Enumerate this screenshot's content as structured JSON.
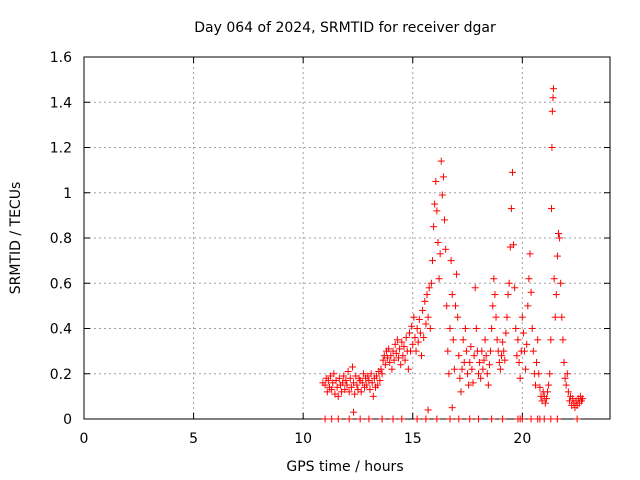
{
  "chart_data": {
    "type": "scatter",
    "title": "Day 064 of 2024, SRMTID for receiver dgar",
    "xlabel": "GPS time / hours",
    "ylabel": "SRMTID / TECUs",
    "xlim": [
      0,
      24
    ],
    "ylim": [
      0,
      1.6
    ],
    "xticks": [
      0,
      5,
      10,
      15,
      20
    ],
    "xtick_labels": [
      "0",
      "5",
      "10",
      "15",
      "20"
    ],
    "yticks": [
      0,
      0.2,
      0.4,
      0.6,
      0.8,
      1,
      1.2,
      1.4,
      1.6
    ],
    "ytick_labels": [
      "0",
      "0.2",
      "0.4",
      "0.6",
      "0.8",
      "1",
      "1.2",
      "1.4",
      "1.6"
    ],
    "grid": true,
    "marker": "+",
    "color": "#ff0000",
    "series": [
      {
        "name": "SRMTID",
        "points": [
          [
            10.9,
            0.16
          ],
          [
            11.0,
            0.15
          ],
          [
            11.05,
            0.18
          ],
          [
            11.1,
            0.12
          ],
          [
            11.15,
            0.17
          ],
          [
            11.2,
            0.14
          ],
          [
            11.25,
            0.19
          ],
          [
            11.3,
            0.13
          ],
          [
            11.35,
            0.16
          ],
          [
            11.4,
            0.2
          ],
          [
            11.45,
            0.11
          ],
          [
            11.5,
            0.17
          ],
          [
            11.55,
            0.14
          ],
          [
            11.6,
            0.1
          ],
          [
            11.65,
            0.18
          ],
          [
            11.7,
            0.15
          ],
          [
            11.75,
            0.12
          ],
          [
            11.8,
            0.16
          ],
          [
            11.85,
            0.19
          ],
          [
            11.9,
            0.13
          ],
          [
            11.95,
            0.17
          ],
          [
            12.0,
            0.15
          ],
          [
            12.05,
            0.21
          ],
          [
            12.1,
            0.12
          ],
          [
            12.15,
            0.18
          ],
          [
            12.2,
            0.14
          ],
          [
            12.25,
            0.23
          ],
          [
            12.3,
            0.16
          ],
          [
            12.35,
            0.11
          ],
          [
            12.4,
            0.19
          ],
          [
            12.45,
            0.15
          ],
          [
            12.5,
            0.13
          ],
          [
            12.55,
            0.18
          ],
          [
            12.6,
            0.17
          ],
          [
            12.65,
            0.12
          ],
          [
            12.7,
            0.16
          ],
          [
            12.75,
            0.2
          ],
          [
            12.8,
            0.14
          ],
          [
            12.85,
            0.18
          ],
          [
            12.9,
            0.15
          ],
          [
            12.95,
            0.19
          ],
          [
            13.0,
            0.17
          ],
          [
            13.05,
            0.13
          ],
          [
            13.1,
            0.2
          ],
          [
            13.15,
            0.16
          ],
          [
            13.2,
            0.1
          ],
          [
            13.25,
            0.18
          ],
          [
            13.3,
            0.14
          ],
          [
            13.35,
            0.19
          ],
          [
            13.4,
            0.15
          ],
          [
            13.45,
            0.21
          ],
          [
            13.5,
            0.17
          ],
          [
            13.55,
            0.22
          ],
          [
            13.6,
            0.2
          ],
          [
            13.65,
            0.26
          ],
          [
            13.7,
            0.28
          ],
          [
            13.75,
            0.24
          ],
          [
            13.8,
            0.3
          ],
          [
            13.85,
            0.27
          ],
          [
            13.9,
            0.31
          ],
          [
            13.95,
            0.25
          ],
          [
            14.0,
            0.28
          ],
          [
            14.05,
            0.22
          ],
          [
            14.1,
            0.3
          ],
          [
            14.15,
            0.26
          ],
          [
            14.2,
            0.33
          ],
          [
            14.25,
            0.29
          ],
          [
            14.3,
            0.35
          ],
          [
            14.35,
            0.27
          ],
          [
            14.4,
            0.31
          ],
          [
            14.45,
            0.24
          ],
          [
            14.5,
            0.34
          ],
          [
            14.55,
            0.28
          ],
          [
            14.6,
            0.32
          ],
          [
            14.65,
            0.26
          ],
          [
            14.7,
            0.36
          ],
          [
            14.75,
            0.3
          ],
          [
            14.8,
            0.22
          ],
          [
            14.85,
            0.38
          ],
          [
            14.9,
            0.3
          ],
          [
            14.95,
            0.41
          ],
          [
            15.0,
            0.33
          ],
          [
            15.05,
            0.45
          ],
          [
            15.1,
            0.36
          ],
          [
            15.15,
            0.3
          ],
          [
            15.2,
            0.4
          ],
          [
            15.25,
            0.34
          ],
          [
            15.3,
            0.44
          ],
          [
            15.35,
            0.38
          ],
          [
            15.4,
            0.28
          ],
          [
            15.45,
            0.48
          ],
          [
            15.5,
            0.36
          ],
          [
            15.55,
            0.52
          ],
          [
            15.6,
            0.42
          ],
          [
            15.65,
            0.55
          ],
          [
            15.7,
            0.45
          ],
          [
            15.75,
            0.58
          ],
          [
            15.8,
            0.4
          ],
          [
            15.85,
            0.6
          ],
          [
            15.9,
            0.7
          ],
          [
            15.95,
            0.85
          ],
          [
            16.0,
            0.95
          ],
          [
            16.05,
            1.05
          ],
          [
            16.1,
            0.92
          ],
          [
            16.15,
            0.78
          ],
          [
            16.2,
            0.62
          ],
          [
            16.25,
            0.73
          ],
          [
            16.3,
            1.14
          ],
          [
            16.35,
            0.99
          ],
          [
            16.4,
            1.07
          ],
          [
            16.45,
            0.88
          ],
          [
            16.5,
            0.75
          ],
          [
            16.55,
            0.5
          ],
          [
            16.6,
            0.3
          ],
          [
            16.65,
            0.2
          ],
          [
            16.7,
            0.4
          ],
          [
            16.75,
            0.7
          ],
          [
            16.8,
            0.55
          ],
          [
            16.85,
            0.35
          ],
          [
            16.9,
            0.22
          ],
          [
            16.95,
            0.5
          ],
          [
            17.0,
            0.64
          ],
          [
            17.05,
            0.45
          ],
          [
            17.1,
            0.28
          ],
          [
            17.15,
            0.18
          ],
          [
            17.2,
            0.12
          ],
          [
            17.25,
            0.22
          ],
          [
            17.3,
            0.35
          ],
          [
            17.35,
            0.25
          ],
          [
            17.4,
            0.4
          ],
          [
            17.45,
            0.3
          ],
          [
            17.5,
            0.2
          ],
          [
            17.55,
            0.15
          ],
          [
            17.6,
            0.25
          ],
          [
            17.65,
            0.32
          ],
          [
            17.7,
            0.22
          ],
          [
            17.75,
            0.16
          ],
          [
            17.8,
            0.28
          ],
          [
            17.85,
            0.58
          ],
          [
            17.9,
            0.4
          ],
          [
            17.95,
            0.3
          ],
          [
            18.0,
            0.2
          ],
          [
            18.05,
            0.25
          ],
          [
            18.1,
            0.18
          ],
          [
            18.15,
            0.3
          ],
          [
            18.2,
            0.22
          ],
          [
            18.25,
            0.26
          ],
          [
            18.3,
            0.35
          ],
          [
            18.35,
            0.28
          ],
          [
            18.4,
            0.2
          ],
          [
            18.45,
            0.15
          ],
          [
            18.5,
            0.24
          ],
          [
            18.55,
            0.3
          ],
          [
            18.6,
            0.4
          ],
          [
            18.65,
            0.5
          ],
          [
            18.7,
            0.62
          ],
          [
            18.75,
            0.55
          ],
          [
            18.8,
            0.45
          ],
          [
            18.85,
            0.35
          ],
          [
            18.9,
            0.3
          ],
          [
            18.95,
            0.25
          ],
          [
            19.0,
            0.22
          ],
          [
            19.05,
            0.28
          ],
          [
            19.1,
            0.34
          ],
          [
            19.15,
            0.3
          ],
          [
            19.2,
            0.26
          ],
          [
            19.25,
            0.38
          ],
          [
            19.3,
            0.45
          ],
          [
            19.35,
            0.55
          ],
          [
            19.4,
            0.6
          ],
          [
            19.45,
            0.76
          ],
          [
            19.5,
            0.93
          ],
          [
            19.55,
            1.09
          ],
          [
            19.6,
            0.77
          ],
          [
            19.65,
            0.58
          ],
          [
            19.7,
            0.4
          ],
          [
            19.75,
            0.28
          ],
          [
            19.8,
            0.35
          ],
          [
            19.85,
            0.25
          ],
          [
            19.9,
            0.18
          ],
          [
            19.95,
            0.3
          ],
          [
            20.0,
            0.45
          ],
          [
            20.05,
            0.38
          ],
          [
            20.1,
            0.3
          ],
          [
            20.15,
            0.22
          ],
          [
            20.2,
            0.33
          ],
          [
            20.25,
            0.5
          ],
          [
            20.3,
            0.62
          ],
          [
            20.35,
            0.73
          ],
          [
            20.4,
            0.56
          ],
          [
            20.45,
            0.4
          ],
          [
            20.5,
            0.3
          ],
          [
            20.55,
            0.2
          ],
          [
            20.6,
            0.15
          ],
          [
            20.65,
            0.25
          ],
          [
            20.7,
            0.35
          ],
          [
            20.75,
            0.2
          ],
          [
            20.8,
            0.14
          ],
          [
            20.85,
            0.1
          ],
          [
            20.9,
            0.08
          ],
          [
            20.95,
            0.12
          ],
          [
            21.0,
            0.1
          ],
          [
            21.05,
            0.07
          ],
          [
            21.1,
            0.09
          ],
          [
            21.15,
            0.12
          ],
          [
            21.2,
            0.15
          ],
          [
            21.25,
            0.2
          ],
          [
            21.3,
            0.35
          ],
          [
            21.33,
            0.93
          ],
          [
            21.35,
            1.2
          ],
          [
            21.37,
            1.36
          ],
          [
            21.4,
            1.42
          ],
          [
            21.42,
            1.46
          ],
          [
            21.45,
            0.62
          ],
          [
            21.5,
            0.45
          ],
          [
            21.55,
            0.55
          ],
          [
            21.6,
            0.72
          ],
          [
            21.65,
            0.82
          ],
          [
            21.7,
            0.8
          ],
          [
            21.75,
            0.6
          ],
          [
            21.8,
            0.45
          ],
          [
            21.85,
            0.35
          ],
          [
            21.9,
            0.25
          ],
          [
            21.95,
            0.18
          ],
          [
            22.0,
            0.15
          ],
          [
            22.05,
            0.2
          ],
          [
            22.1,
            0.12
          ],
          [
            22.15,
            0.08
          ],
          [
            22.2,
            0.1
          ],
          [
            22.25,
            0.06
          ],
          [
            22.3,
            0.09
          ],
          [
            22.35,
            0.07
          ],
          [
            22.4,
            0.05
          ],
          [
            22.45,
            0.08
          ],
          [
            22.5,
            0.06
          ],
          [
            22.55,
            0.09
          ],
          [
            22.6,
            0.07
          ],
          [
            22.65,
            0.1
          ],
          [
            22.7,
            0.08
          ],
          [
            22.75,
            0.09
          ],
          [
            11.0,
            0
          ],
          [
            11.3,
            0
          ],
          [
            11.6,
            0
          ],
          [
            12.1,
            0
          ],
          [
            12.6,
            0
          ],
          [
            13.0,
            0
          ],
          [
            13.6,
            0
          ],
          [
            14.1,
            0
          ],
          [
            14.5,
            0
          ],
          [
            15.2,
            0
          ],
          [
            15.6,
            0
          ],
          [
            16.1,
            0
          ],
          [
            16.7,
            0
          ],
          [
            17.1,
            0
          ],
          [
            17.6,
            0
          ],
          [
            18.0,
            0
          ],
          [
            18.6,
            0
          ],
          [
            19.1,
            0
          ],
          [
            19.8,
            0
          ],
          [
            19.9,
            0
          ],
          [
            20.0,
            0
          ],
          [
            20.4,
            0
          ],
          [
            20.7,
            0
          ],
          [
            20.8,
            0
          ],
          [
            21.0,
            0
          ],
          [
            21.3,
            0
          ],
          [
            21.6,
            0
          ],
          [
            22.5,
            0
          ],
          [
            12.3,
            0.03
          ],
          [
            15.7,
            0.04
          ],
          [
            16.8,
            0.05
          ]
        ]
      }
    ]
  }
}
